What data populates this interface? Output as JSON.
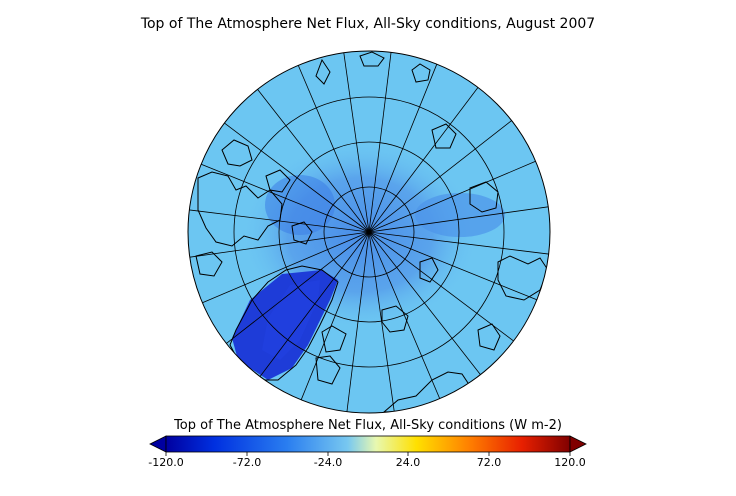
{
  "title": "Top of The Atmosphere Net Flux, All-Sky conditions, August 2007",
  "colorbar": {
    "label": "Top of The Atmosphere Net Flux, All-Sky conditions (W m-2)",
    "ticks": [
      "-120.0",
      "-72.0",
      "-24.0",
      "24.0",
      "72.0",
      "120.0"
    ],
    "range": [
      -120,
      120
    ],
    "colors": [
      "#0000a0",
      "#0030e0",
      "#2a7ef0",
      "#78c8f0",
      "#e8f8b0",
      "#ffe000",
      "#ff8000",
      "#e82000",
      "#800000"
    ]
  },
  "map": {
    "projection": "north polar stereographic",
    "background_color": "#6cc6f2",
    "dark_region_color": "#1e3cd8",
    "mid_region_color": "#3f8ee6",
    "coastline_color": "#000000",
    "graticule_color": "#000000"
  }
}
